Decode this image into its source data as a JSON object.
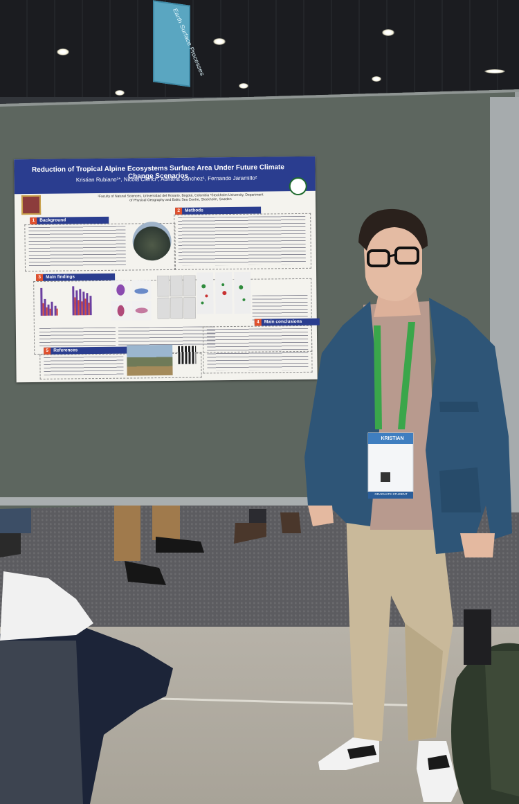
{
  "scene": {
    "description_tags": [
      "poster-session",
      "presenter",
      "poster-board"
    ],
    "colors": {
      "poster_header": "#2a3d8f",
      "section_number": "#e0512d",
      "board": "#5d665f",
      "jacket": "#2e5577",
      "lanyard": "#3aa64a"
    }
  },
  "sign": {
    "text": "Earth Surface Processes"
  },
  "poster": {
    "title": "Reduction of Tropical Alpine Ecosystems Surface Area Under Future Climate Change Scenarios",
    "authors": "Kristian Rubiano¹*, Nicola Clerici¹, Adriana Sánchez¹, Fernando Jaramillo²",
    "affiliations": "¹Faculty of Natural Sciences, Universidad del Rosario, Bogotá, Colombia ²Stockholm University, Department of Physical Geography and Baltic Sea Centre, Stockholm, Sweden",
    "sections": [
      {
        "num": "1",
        "label": "Background"
      },
      {
        "num": "2",
        "label": "Methods"
      },
      {
        "num": "3",
        "label": "Main findings"
      },
      {
        "num": "4",
        "label": "Main conclusions"
      },
      {
        "num": "5",
        "label": "References"
      }
    ]
  },
  "badge": {
    "name": "KRISTIAN",
    "footer": "GRADUATE STUDENT"
  }
}
